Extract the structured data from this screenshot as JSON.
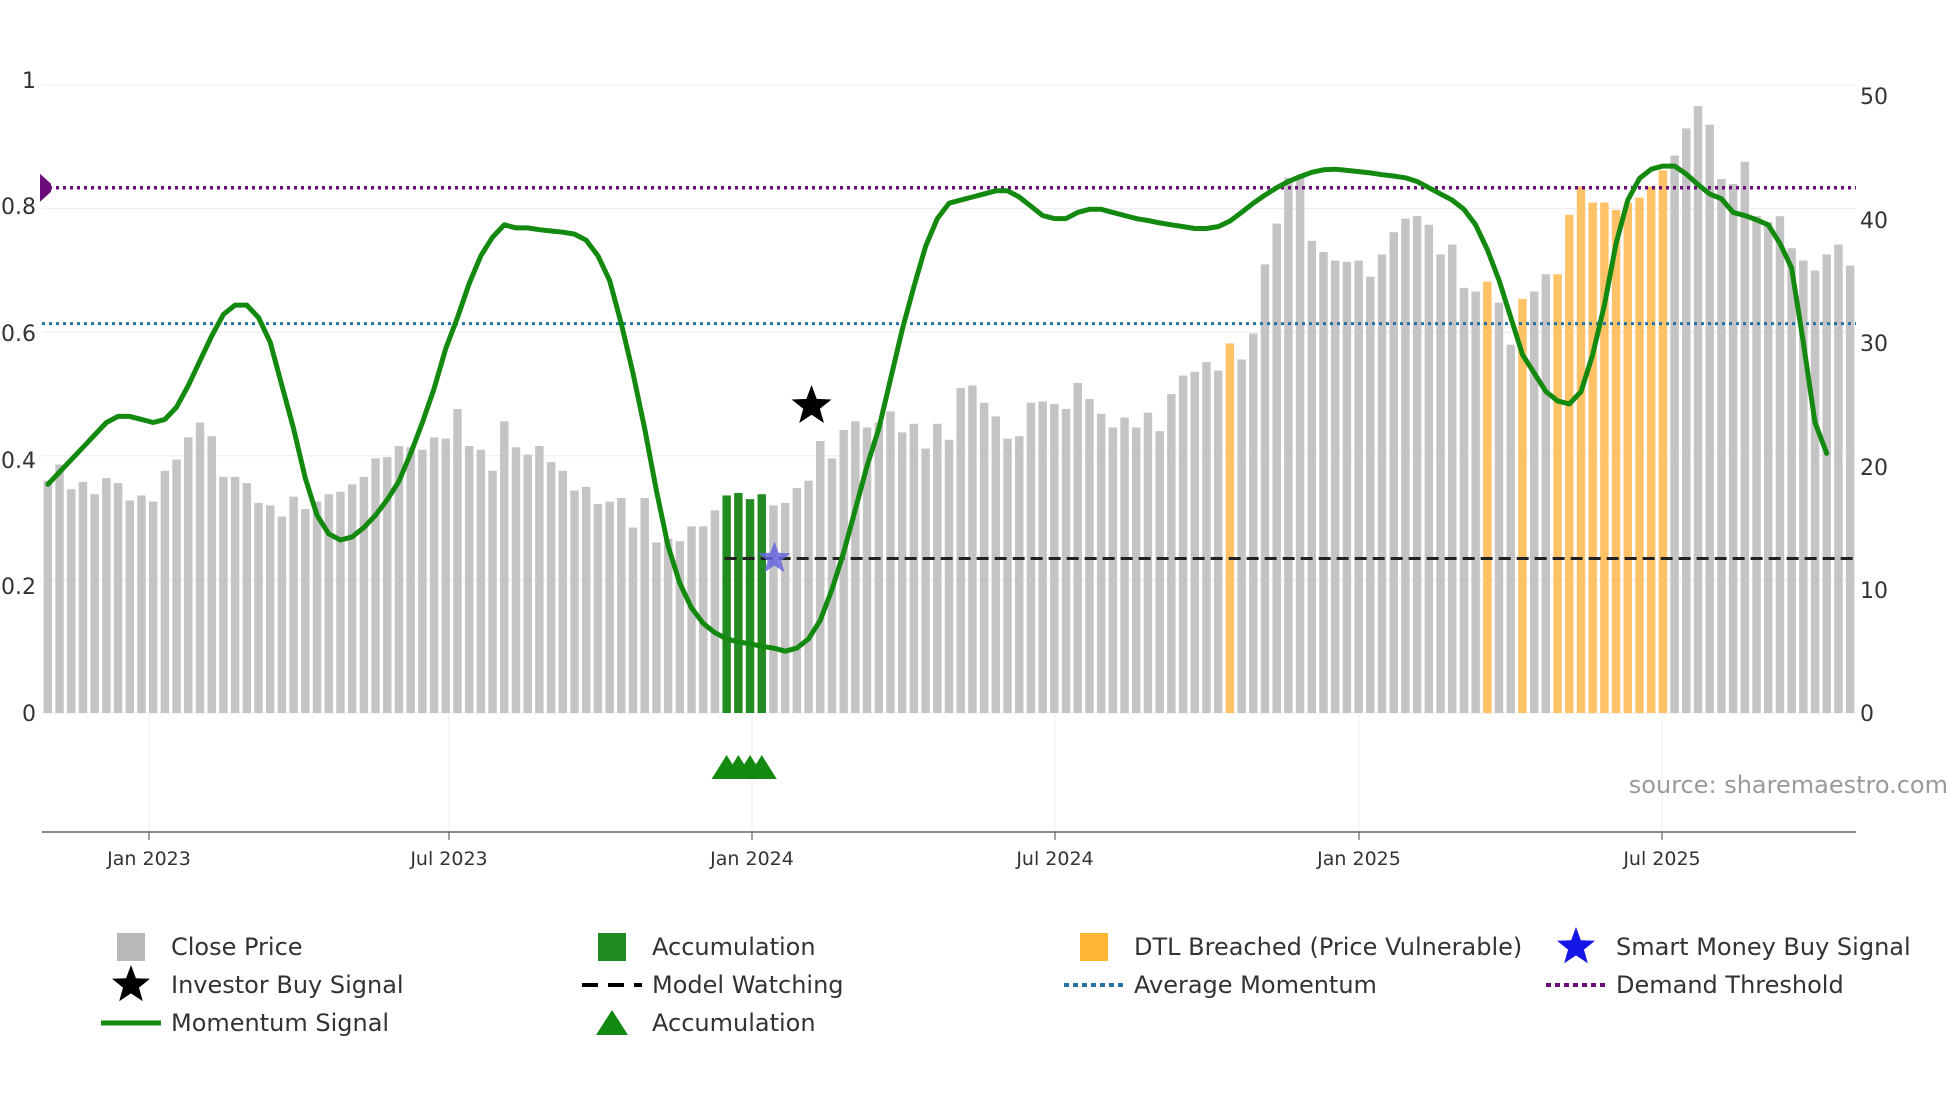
{
  "chart_data": {
    "type": "bar",
    "title": "",
    "source": "source: sharemaestro.com",
    "left_axis": {
      "ticks": [
        "0",
        "0.2",
        "0.4",
        "0.6",
        "0.8",
        "1"
      ],
      "ylim": [
        0,
        1
      ]
    },
    "right_axis": {
      "ticks": [
        "0",
        "10",
        "20",
        "30",
        "40",
        "50"
      ],
      "ylim": [
        0,
        50
      ]
    },
    "x_axis": {
      "ticks": [
        "Jan 2023",
        "Jul 2023",
        "Jan 2024",
        "Jul 2024",
        "Jan 2025",
        "Jul 2025"
      ]
    },
    "colors": {
      "close": "#c4c4c4",
      "accumulation": "#228b22",
      "dtl": "#ffc266",
      "momentum": "#138a0f",
      "average": "#2471a3",
      "demand": "#6c0c7a",
      "watching": "#222222",
      "smart_money": "#2020d0"
    },
    "close_prices": [
      18.8,
      20.1,
      18.1,
      18.7,
      17.7,
      19.0,
      18.6,
      17.2,
      17.6,
      17.1,
      19.6,
      20.5,
      22.3,
      23.5,
      22.4,
      19.1,
      19.1,
      18.6,
      17.0,
      16.8,
      15.9,
      17.5,
      16.5,
      17.1,
      17.7,
      17.9,
      18.5,
      19.1,
      20.6,
      20.7,
      21.6,
      21.5,
      21.3,
      22.3,
      22.2,
      24.6,
      21.6,
      21.3,
      19.6,
      23.6,
      21.5,
      20.9,
      21.6,
      20.3,
      19.6,
      18.0,
      18.3,
      16.9,
      17.1,
      17.4,
      15.0,
      17.4,
      13.8,
      14.1,
      13.9,
      15.1,
      15.1,
      16.4,
      17.6,
      17.8,
      17.3,
      17.7,
      16.8,
      17.0,
      18.2,
      18.8,
      22.0,
      20.6,
      22.9,
      23.6,
      23.1,
      23.5,
      24.4,
      22.7,
      23.4,
      21.4,
      23.4,
      22.1,
      26.3,
      26.5,
      25.1,
      24.0,
      22.2,
      22.4,
      25.1,
      25.2,
      25.0,
      24.6,
      26.7,
      25.4,
      24.2,
      23.1,
      23.9,
      23.1,
      24.3,
      22.8,
      25.8,
      27.3,
      27.6,
      28.4,
      27.7,
      29.9,
      28.6,
      30.7,
      36.3,
      39.6,
      43.3,
      43.4,
      38.2,
      37.3,
      36.6,
      36.5,
      36.6,
      35.3,
      37.1,
      38.9,
      40.0,
      40.2,
      39.5,
      37.1,
      37.9,
      34.4,
      34.1,
      34.9,
      33.2,
      29.8,
      33.5,
      34.1,
      35.5,
      35.5,
      40.3,
      42.6,
      41.3,
      41.3,
      40.7,
      41.3,
      41.7,
      42.6,
      43.9,
      45.1,
      47.3,
      49.1,
      47.6,
      43.2,
      42.8,
      44.6,
      40.2,
      39.7,
      40.2,
      37.6,
      36.6,
      35.8,
      37.1,
      37.9,
      36.2
    ],
    "accumulation_bars": [
      58,
      59,
      60,
      61
    ],
    "dtl_bars": [
      101,
      123,
      126,
      129,
      130,
      131,
      132,
      133,
      134,
      135,
      136,
      137,
      138
    ],
    "momentum_signal": [
      0.37,
      0.39,
      0.41,
      0.43,
      0.45,
      0.47,
      0.48,
      0.48,
      0.475,
      0.47,
      0.475,
      0.495,
      0.53,
      0.57,
      0.61,
      0.645,
      0.66,
      0.66,
      0.64,
      0.6,
      0.53,
      0.46,
      0.38,
      0.32,
      0.29,
      0.28,
      0.285,
      0.3,
      0.32,
      0.345,
      0.375,
      0.42,
      0.47,
      0.525,
      0.59,
      0.64,
      0.695,
      0.74,
      0.77,
      0.79,
      0.785,
      0.785,
      0.782,
      0.78,
      0.778,
      0.775,
      0.765,
      0.74,
      0.7,
      0.63,
      0.55,
      0.46,
      0.36,
      0.27,
      0.21,
      0.17,
      0.145,
      0.13,
      0.12,
      0.115,
      0.112,
      0.108,
      0.105,
      0.1,
      0.105,
      0.12,
      0.15,
      0.2,
      0.26,
      0.33,
      0.4,
      0.46,
      0.54,
      0.62,
      0.69,
      0.755,
      0.8,
      0.825,
      0.83,
      0.835,
      0.84,
      0.845,
      0.845,
      0.835,
      0.82,
      0.805,
      0.8,
      0.8,
      0.81,
      0.815,
      0.815,
      0.81,
      0.805,
      0.8,
      0.797,
      0.793,
      0.79,
      0.787,
      0.784,
      0.784,
      0.787,
      0.796,
      0.81,
      0.825,
      0.838,
      0.85,
      0.86,
      0.868,
      0.875,
      0.879,
      0.88,
      0.878,
      0.876,
      0.874,
      0.871,
      0.869,
      0.866,
      0.86,
      0.85,
      0.84,
      0.83,
      0.815,
      0.79,
      0.75,
      0.7,
      0.64,
      0.58,
      0.55,
      0.52,
      0.505,
      0.5,
      0.52,
      0.58,
      0.66,
      0.76,
      0.83,
      0.865,
      0.88,
      0.885,
      0.885,
      0.872,
      0.855,
      0.84,
      0.832,
      0.81,
      0.805,
      0.798,
      0.79,
      0.76,
      0.72,
      0.6,
      0.47,
      0.42
    ],
    "average_momentum": 0.63,
    "demand_threshold": 0.85,
    "model_watching": {
      "start_index": 58,
      "level": 0.25
    },
    "investor_buy_signal": {
      "index": 65,
      "value": 0.5
    },
    "smart_money_buy_signal": {
      "index": 62,
      "value": 0.25
    },
    "accumulation_markers": [
      58,
      59,
      60,
      61
    ],
    "legend": [
      {
        "label": "Close Price",
        "kind": "square",
        "color": "#b8b8b8"
      },
      {
        "label": "Accumulation",
        "kind": "square",
        "color": "#228b22"
      },
      {
        "label": "DTL Breached (Price Vulnerable)",
        "kind": "square",
        "color": "#ffb733"
      },
      {
        "label": "Smart Money Buy Signal",
        "kind": "star",
        "color": "#1515e6"
      },
      {
        "label": "Investor Buy Signal",
        "kind": "star",
        "color": "#000000"
      },
      {
        "label": "Model Watching",
        "kind": "dash",
        "color": "#000000"
      },
      {
        "label": "Average Momentum",
        "kind": "dot",
        "color": "#2471a3"
      },
      {
        "label": "Demand Threshold",
        "kind": "dot",
        "color": "#6c0c7a"
      },
      {
        "label": "Momentum Signal",
        "kind": "line",
        "color": "#138a0f"
      },
      {
        "label": "Accumulation",
        "kind": "triangle",
        "color": "#138a0f"
      }
    ]
  }
}
